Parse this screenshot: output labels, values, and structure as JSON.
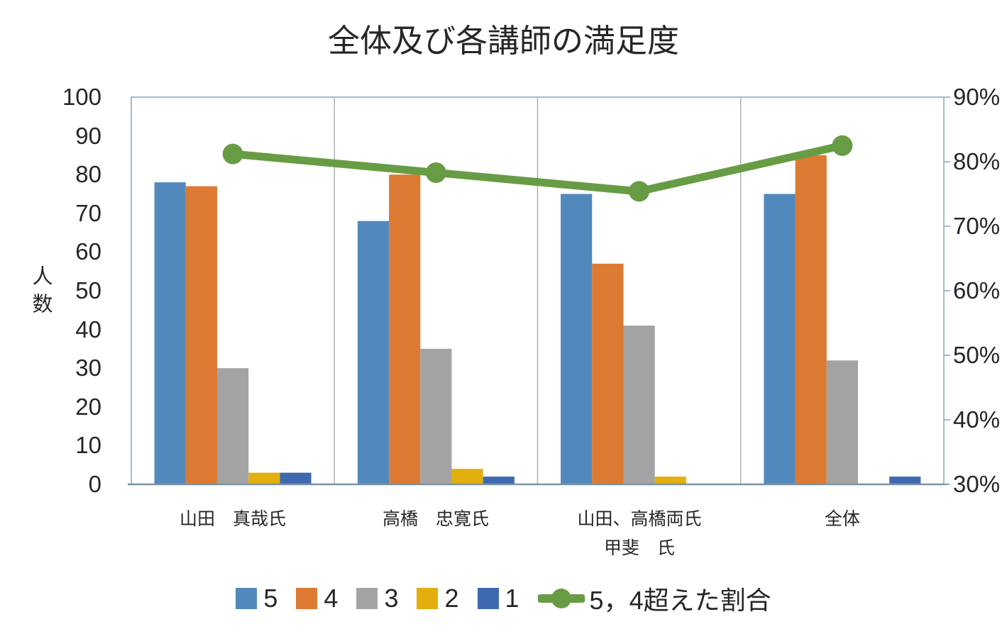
{
  "chart_data": {
    "type": "bar",
    "subtype": "combo-bar-line",
    "title": "全体及び各講師の満足度",
    "categories": [
      {
        "label": "山田　真哉氏"
      },
      {
        "label": "高橋　忠寛氏"
      },
      {
        "label": "山田、高橋両氏",
        "label_line2": "甲斐　氏"
      },
      {
        "label": "全体"
      }
    ],
    "series": [
      {
        "name": "5",
        "color": "#5289BD",
        "values": [
          78,
          68,
          75,
          75
        ]
      },
      {
        "name": "4",
        "color": "#DC7A33",
        "values": [
          77,
          80,
          57,
          85
        ]
      },
      {
        "name": "3",
        "color": "#A3A3A3",
        "values": [
          30,
          35,
          41,
          32
        ]
      },
      {
        "name": "2",
        "color": "#E3AF0E",
        "values": [
          3,
          4,
          2,
          0
        ]
      },
      {
        "name": "1",
        "color": "#3E69B0",
        "values": [
          3,
          2,
          0,
          2
        ]
      }
    ],
    "line_series": {
      "name": "5，4超えた割合",
      "color": "#689C44",
      "axis": "right",
      "values_percent": [
        81.2,
        78.3,
        75.4,
        82.5
      ]
    },
    "left_axis": {
      "title": "人数",
      "min": 0,
      "max": 100,
      "step": 10,
      "tick_labels": [
        "0",
        "10",
        "20",
        "30",
        "40",
        "50",
        "60",
        "70",
        "80",
        "90",
        "100"
      ]
    },
    "right_axis": {
      "min": 30,
      "max": 90,
      "step": 10,
      "tick_labels": [
        "30%",
        "40%",
        "50%",
        "60%",
        "70%",
        "80%",
        "90%"
      ]
    },
    "legend": {
      "position": "bottom"
    },
    "layout": {
      "plot_border_color": "#8CAAC4",
      "bottom_axis_color": "#7B92A4",
      "separator_color": "#A6ADB3",
      "text_color": "#262626"
    }
  }
}
